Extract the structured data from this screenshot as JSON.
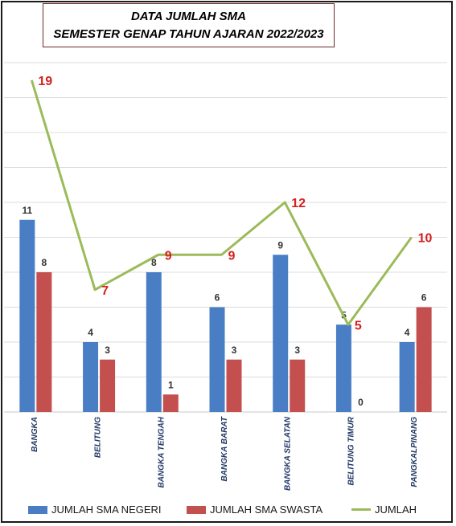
{
  "chart_data": {
    "type": "bar",
    "title_line1": "DATA JUMLAH SMA",
    "title_line2": "SEMESTER GENAP TAHUN AJARAN 2022/2023",
    "categories": [
      "BANGKA",
      "BELITUNG",
      "BANGKA TENGAH",
      "BANGKA BARAT",
      "BANGKA SELATAN",
      "BELITUNG TIMUR",
      "PANGKALPINANG"
    ],
    "series": [
      {
        "name": "JUMLAH SMA NEGERI",
        "type": "bar",
        "color": "#4a7ec4",
        "values": [
          11,
          4,
          8,
          6,
          9,
          5,
          4
        ]
      },
      {
        "name": "JUMLAH SMA SWASTA",
        "type": "bar",
        "color": "#c44f4f",
        "values": [
          8,
          3,
          1,
          3,
          3,
          0,
          6
        ]
      },
      {
        "name": "JUMLAH",
        "type": "line",
        "color": "#9bbb59",
        "values": [
          19,
          7,
          9,
          9,
          12,
          5,
          10
        ]
      }
    ],
    "ylim": [
      0,
      20
    ],
    "grid": true,
    "legend_position": "bottom",
    "line_label_color": "#d42020"
  }
}
